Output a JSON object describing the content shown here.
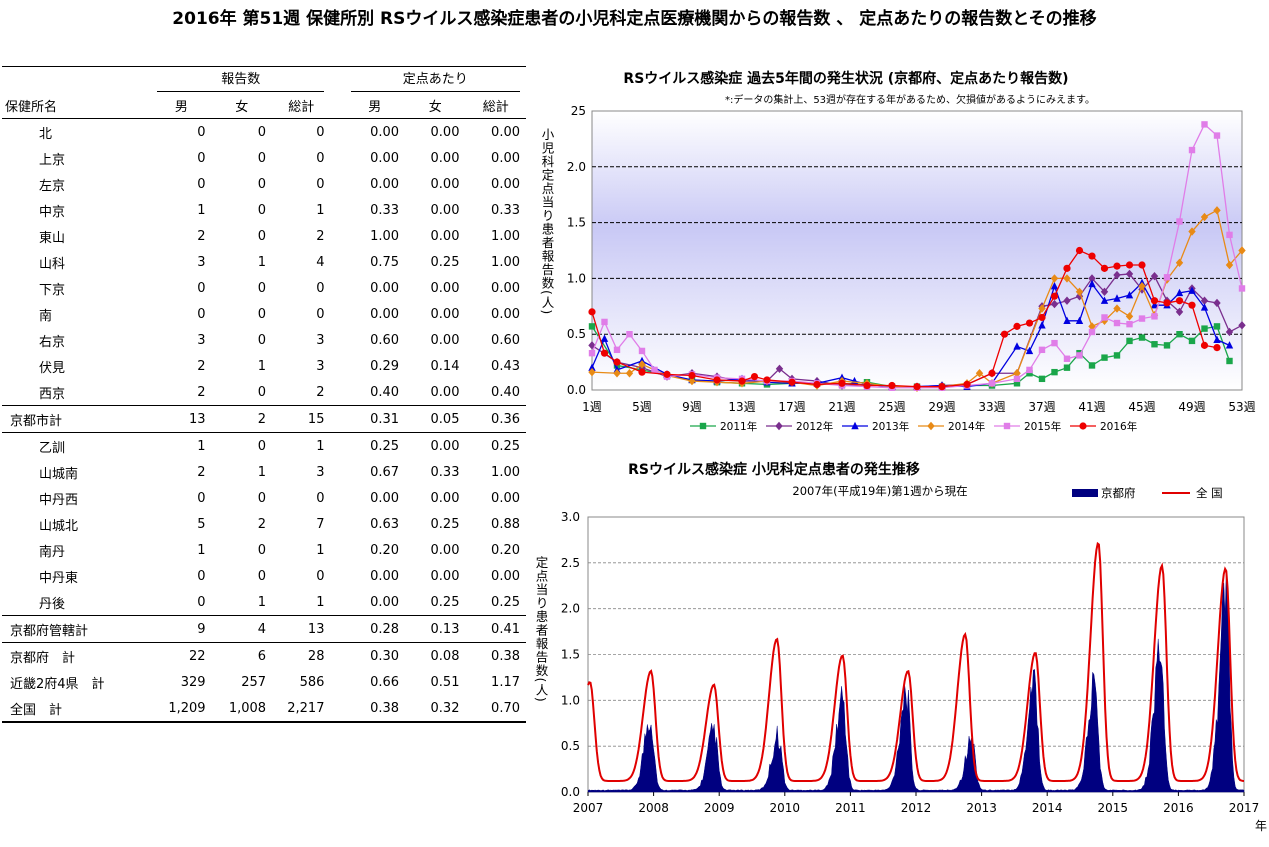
{
  "title": "2016年 第51週 保健所別 RSウイルス感染症患者の小児科定点医療機関からの報告数 、 定点あたりの報告数とその推移",
  "table": {
    "group_counts": "報告数",
    "group_per": "定点あたり",
    "col_name": "保健所名",
    "cols": [
      "男",
      "女",
      "総計",
      "男",
      "女",
      "総計"
    ],
    "rows": [
      {
        "name": "北",
        "indent": true,
        "v": [
          "0",
          "0",
          "0",
          "0.00",
          "0.00",
          "0.00"
        ]
      },
      {
        "name": "上京",
        "indent": true,
        "v": [
          "0",
          "0",
          "0",
          "0.00",
          "0.00",
          "0.00"
        ]
      },
      {
        "name": "左京",
        "indent": true,
        "v": [
          "0",
          "0",
          "0",
          "0.00",
          "0.00",
          "0.00"
        ]
      },
      {
        "name": "中京",
        "indent": true,
        "v": [
          "1",
          "0",
          "1",
          "0.33",
          "0.00",
          "0.33"
        ]
      },
      {
        "name": "東山",
        "indent": true,
        "v": [
          "2",
          "0",
          "2",
          "1.00",
          "0.00",
          "1.00"
        ]
      },
      {
        "name": "山科",
        "indent": true,
        "v": [
          "3",
          "1",
          "4",
          "0.75",
          "0.25",
          "1.00"
        ]
      },
      {
        "name": "下京",
        "indent": true,
        "v": [
          "0",
          "0",
          "0",
          "0.00",
          "0.00",
          "0.00"
        ]
      },
      {
        "name": "南",
        "indent": true,
        "v": [
          "0",
          "0",
          "0",
          "0.00",
          "0.00",
          "0.00"
        ]
      },
      {
        "name": "右京",
        "indent": true,
        "v": [
          "3",
          "0",
          "3",
          "0.60",
          "0.00",
          "0.60"
        ]
      },
      {
        "name": "伏見",
        "indent": true,
        "v": [
          "2",
          "1",
          "3",
          "0.29",
          "0.14",
          "0.43"
        ]
      },
      {
        "name": "西京",
        "indent": true,
        "v": [
          "2",
          "0",
          "2",
          "0.40",
          "0.00",
          "0.40"
        ]
      },
      {
        "name": "京都市計",
        "indent": false,
        "total": true,
        "v": [
          "13",
          "2",
          "15",
          "0.31",
          "0.05",
          "0.36"
        ]
      },
      {
        "name": "乙訓",
        "indent": true,
        "v": [
          "1",
          "0",
          "1",
          "0.25",
          "0.00",
          "0.25"
        ]
      },
      {
        "name": "山城南",
        "indent": true,
        "v": [
          "2",
          "1",
          "3",
          "0.67",
          "0.33",
          "1.00"
        ]
      },
      {
        "name": "中丹西",
        "indent": true,
        "v": [
          "0",
          "0",
          "0",
          "0.00",
          "0.00",
          "0.00"
        ]
      },
      {
        "name": "山城北",
        "indent": true,
        "v": [
          "5",
          "2",
          "7",
          "0.63",
          "0.25",
          "0.88"
        ]
      },
      {
        "name": "南丹",
        "indent": true,
        "v": [
          "1",
          "0",
          "1",
          "0.20",
          "0.00",
          "0.20"
        ]
      },
      {
        "name": "中丹東",
        "indent": true,
        "v": [
          "0",
          "0",
          "0",
          "0.00",
          "0.00",
          "0.00"
        ]
      },
      {
        "name": "丹後",
        "indent": true,
        "v": [
          "0",
          "1",
          "1",
          "0.00",
          "0.25",
          "0.25"
        ]
      },
      {
        "name": "京都府管轄計",
        "indent": false,
        "total": true,
        "v": [
          "9",
          "4",
          "13",
          "0.28",
          "0.13",
          "0.41"
        ]
      },
      {
        "name": "京都府　計",
        "indent": false,
        "v": [
          "22",
          "6",
          "28",
          "0.30",
          "0.08",
          "0.38"
        ]
      },
      {
        "name": "近畿2府4県　計",
        "indent": false,
        "v": [
          "329",
          "257",
          "586",
          "0.66",
          "0.51",
          "1.17"
        ]
      },
      {
        "name": "全国　計",
        "indent": false,
        "last": true,
        "v": [
          "1,209",
          "1,008",
          "2,217",
          "0.38",
          "0.32",
          "0.70"
        ]
      }
    ]
  },
  "chart_data": [
    {
      "type": "line",
      "title": "RSウイルス感染症  過去5年間の発生状況 (京都府、定点あたり報告数)",
      "note": "*:データの集計上、53週が存在する年があるため、欠損値があるようにみえます。",
      "ylabel": "小児科定点当り患者報告数(人)",
      "ylim": [
        0,
        25
      ],
      "yticks": [
        "0.0",
        "0.5",
        "1.0",
        "1.5",
        "2.0",
        "25"
      ],
      "ytick_values": [
        0,
        5,
        10,
        15,
        20,
        25
      ],
      "xticks": [
        "1週",
        "5週",
        "9週",
        "13週",
        "17週",
        "21週",
        "25週",
        "29週",
        "33週",
        "37週",
        "41週",
        "45週",
        "49週",
        "53週"
      ],
      "xtick_values": [
        1,
        5,
        9,
        13,
        17,
        21,
        25,
        29,
        33,
        37,
        41,
        45,
        49,
        53
      ],
      "xlim": [
        1,
        53
      ],
      "legend_position": "bottom",
      "series": [
        {
          "name": "2011年",
          "color": "#1aa64a",
          "marker": "square",
          "x": [
            1,
            3,
            5,
            7,
            9,
            11,
            13,
            15,
            17,
            19,
            21,
            23,
            25,
            27,
            29,
            31,
            33,
            35,
            36,
            37,
            38,
            39,
            40,
            41,
            42,
            43,
            44,
            45,
            46,
            47,
            48,
            49,
            50,
            51,
            52
          ],
          "y": [
            5.7,
            2.2,
            1.8,
            1.3,
            0.9,
            0.7,
            0.6,
            0.5,
            0.6,
            0.6,
            0.5,
            0.7,
            0.3,
            0.3,
            0.3,
            0.4,
            0.4,
            0.6,
            1.5,
            1.0,
            1.6,
            2.0,
            3.3,
            2.2,
            2.9,
            3.1,
            4.4,
            4.7,
            4.1,
            4.0,
            5.0,
            4.4,
            5.5,
            5.7,
            2.6
          ]
        },
        {
          "name": "2012年",
          "color": "#7a2f8e",
          "marker": "diamond",
          "x": [
            1,
            3,
            5,
            7,
            9,
            11,
            13,
            15,
            16,
            17,
            19,
            21,
            23,
            25,
            27,
            29,
            31,
            33,
            35,
            37,
            38,
            39,
            40,
            41,
            42,
            43,
            44,
            45,
            46,
            47,
            48,
            49,
            50,
            51,
            52,
            53
          ],
          "y": [
            4.0,
            2.5,
            2.0,
            1.2,
            1.5,
            1.2,
            0.8,
            0.8,
            1.9,
            1.0,
            0.8,
            0.4,
            0.5,
            0.3,
            0.3,
            0.4,
            0.5,
            1.5,
            1.5,
            7.5,
            7.7,
            8.0,
            8.4,
            10.0,
            8.8,
            10.3,
            10.4,
            9.0,
            10.2,
            8.0,
            7.0,
            9.1,
            8.0,
            7.8,
            5.2,
            5.8
          ]
        },
        {
          "name": "2013年",
          "color": "#0000e0",
          "marker": "triangle",
          "x": [
            1,
            2,
            3,
            5,
            7,
            9,
            11,
            13,
            15,
            17,
            19,
            21,
            22,
            23,
            25,
            27,
            29,
            31,
            33,
            35,
            36,
            37,
            38,
            39,
            40,
            41,
            42,
            43,
            44,
            45,
            46,
            47,
            48,
            49,
            50,
            51,
            52
          ],
          "y": [
            2.0,
            4.6,
            1.8,
            2.6,
            1.4,
            0.9,
            0.8,
            1.0,
            0.7,
            0.6,
            0.6,
            1.1,
            0.8,
            0.5,
            0.3,
            0.3,
            0.4,
            0.3,
            0.6,
            3.9,
            3.5,
            5.8,
            9.3,
            6.2,
            6.2,
            9.5,
            8.0,
            8.2,
            8.5,
            9.6,
            7.6,
            7.6,
            8.7,
            8.9,
            7.4,
            4.5,
            4.0
          ]
        },
        {
          "name": "2014年",
          "color": "#e88a16",
          "marker": "diamond",
          "x": [
            1,
            3,
            4,
            5,
            7,
            9,
            11,
            13,
            15,
            17,
            19,
            21,
            23,
            25,
            27,
            29,
            31,
            32,
            33,
            35,
            37,
            38,
            39,
            40,
            41,
            42,
            43,
            44,
            45,
            46,
            47,
            48,
            49,
            50,
            51,
            52,
            53
          ],
          "y": [
            1.6,
            1.5,
            1.5,
            2.3,
            1.3,
            0.8,
            0.7,
            0.6,
            0.8,
            0.7,
            0.4,
            0.8,
            0.6,
            0.3,
            0.2,
            0.3,
            0.6,
            1.5,
            0.6,
            1.5,
            7.3,
            10.0,
            10.0,
            8.8,
            5.7,
            6.2,
            7.3,
            6.6,
            9.3,
            6.7,
            9.9,
            11.4,
            14.2,
            15.5,
            16.1,
            11.2,
            12.5
          ]
        },
        {
          "name": "2015年",
          "color": "#e07de8",
          "marker": "square",
          "x": [
            1,
            2,
            3,
            4,
            5,
            6,
            7,
            9,
            11,
            13,
            15,
            17,
            19,
            21,
            23,
            25,
            27,
            29,
            31,
            33,
            35,
            36,
            37,
            38,
            39,
            40,
            41,
            42,
            43,
            44,
            45,
            46,
            47,
            48,
            49,
            50,
            51,
            52,
            53
          ],
          "y": [
            3.3,
            6.1,
            3.6,
            5.0,
            3.5,
            1.8,
            1.2,
            1.4,
            1.1,
            1.0,
            0.8,
            0.8,
            0.6,
            0.4,
            0.3,
            0.2,
            0.2,
            0.2,
            0.4,
            0.6,
            1.0,
            1.8,
            3.6,
            4.2,
            2.8,
            3.1,
            5.2,
            6.5,
            6.0,
            5.9,
            6.4,
            6.6,
            10.1,
            15.1,
            21.5,
            23.8,
            22.8,
            13.9,
            9.1
          ]
        },
        {
          "name": "2016年",
          "color": "#ee0000",
          "marker": "circle",
          "x": [
            1,
            2,
            3,
            5,
            7,
            9,
            11,
            13,
            14,
            15,
            17,
            19,
            21,
            23,
            25,
            27,
            29,
            31,
            33,
            34,
            35,
            36,
            37,
            38,
            39,
            40,
            41,
            42,
            43,
            44,
            45,
            46,
            47,
            48,
            49,
            50,
            51
          ],
          "y": [
            7.0,
            3.3,
            2.5,
            1.6,
            1.4,
            1.3,
            0.9,
            0.8,
            1.2,
            0.9,
            0.7,
            0.5,
            0.6,
            0.4,
            0.4,
            0.3,
            0.3,
            0.5,
            1.5,
            5.0,
            5.7,
            6.0,
            6.5,
            8.4,
            10.9,
            12.5,
            12.0,
            10.9,
            11.1,
            11.2,
            11.2,
            8.0,
            7.8,
            8.0,
            7.6,
            4.0,
            3.8
          ]
        }
      ]
    },
    {
      "type": "area",
      "title": "RSウイルス感染症  小児科定点患者の発生推移",
      "subtitle": "2007年(平成19年)第1週から現在",
      "ylabel": "定点当り患者報告数(人)",
      "ylim": [
        0,
        3.0
      ],
      "yticks": [
        "0.0",
        "0.5",
        "1.0",
        "1.5",
        "2.0",
        "2.5",
        "3.0"
      ],
      "ytick_values": [
        0,
        0.5,
        1.0,
        1.5,
        2.0,
        2.5,
        3.0
      ],
      "xticks": [
        "2007",
        "2008",
        "2009",
        "2010",
        "2011",
        "2012",
        "2013",
        "2014",
        "2015",
        "2016",
        "2017"
      ],
      "xtick_values": [
        2007,
        2008,
        2009,
        2010,
        2011,
        2012,
        2013,
        2014,
        2015,
        2016,
        2017
      ],
      "xlim": [
        2007,
        2017
      ],
      "xunit": "年",
      "legend_position": "top-right",
      "series": [
        {
          "name": "京都府",
          "color": "#000080",
          "type": "area",
          "peak_years": [
            2007.95,
            2008.92,
            2009.9,
            2010.88,
            2011.85,
            2012.85,
            2013.8,
            2014.72,
            2015.72,
            2016.72
          ],
          "peaks": [
            0.8,
            0.65,
            0.6,
            1.0,
            1.1,
            0.55,
            1.25,
            1.15,
            1.55,
            2.15
          ]
        },
        {
          "name": "全 国",
          "color": "#e00000",
          "type": "line",
          "peak_years": [
            2007.03,
            2007.96,
            2008.92,
            2009.88,
            2010.88,
            2011.88,
            2012.75,
            2013.82,
            2014.78,
            2015.75,
            2016.72
          ],
          "peaks": [
            1.08,
            1.2,
            1.05,
            1.55,
            1.37,
            1.2,
            1.6,
            1.4,
            2.6,
            2.35,
            2.32
          ]
        }
      ]
    }
  ]
}
